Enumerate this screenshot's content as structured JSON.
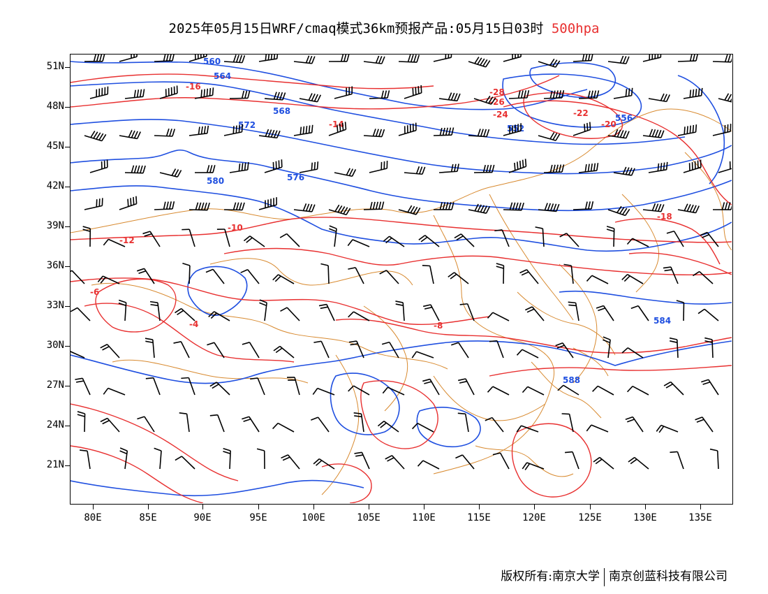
{
  "title": {
    "main": "2025年05月15日WRF/cmaq模式36km预报产品:05月15日03时",
    "level": "500hpa",
    "level_color": "#e83030"
  },
  "axes": {
    "lat_ticks": [
      "51N",
      "48N",
      "45N",
      "42N",
      "39N",
      "36N",
      "33N",
      "30N",
      "27N",
      "24N",
      "21N"
    ],
    "lon_ticks": [
      "80E",
      "85E",
      "90E",
      "95E",
      "100E",
      "105E",
      "110E",
      "115E",
      "120E",
      "125E",
      "130E",
      "135E"
    ]
  },
  "colors": {
    "height_contour": "#1f4fe0",
    "temperature_contour": "#e83030",
    "boundary": "#d88a30",
    "wind_barb": "#000000"
  },
  "height_labels": [
    "560",
    "564",
    "568",
    "572",
    "576",
    "580",
    "584",
    "588",
    "556",
    "552"
  ],
  "temperature_labels": [
    "-16",
    "-12",
    "-14",
    "-10",
    "-8",
    "-6",
    "-4",
    "-18",
    "-20",
    "-22",
    "-24",
    "-26",
    "-28"
  ],
  "copyright": {
    "left": "版权所有:南京大学",
    "right": "南京创蓝科技有限公司"
  }
}
